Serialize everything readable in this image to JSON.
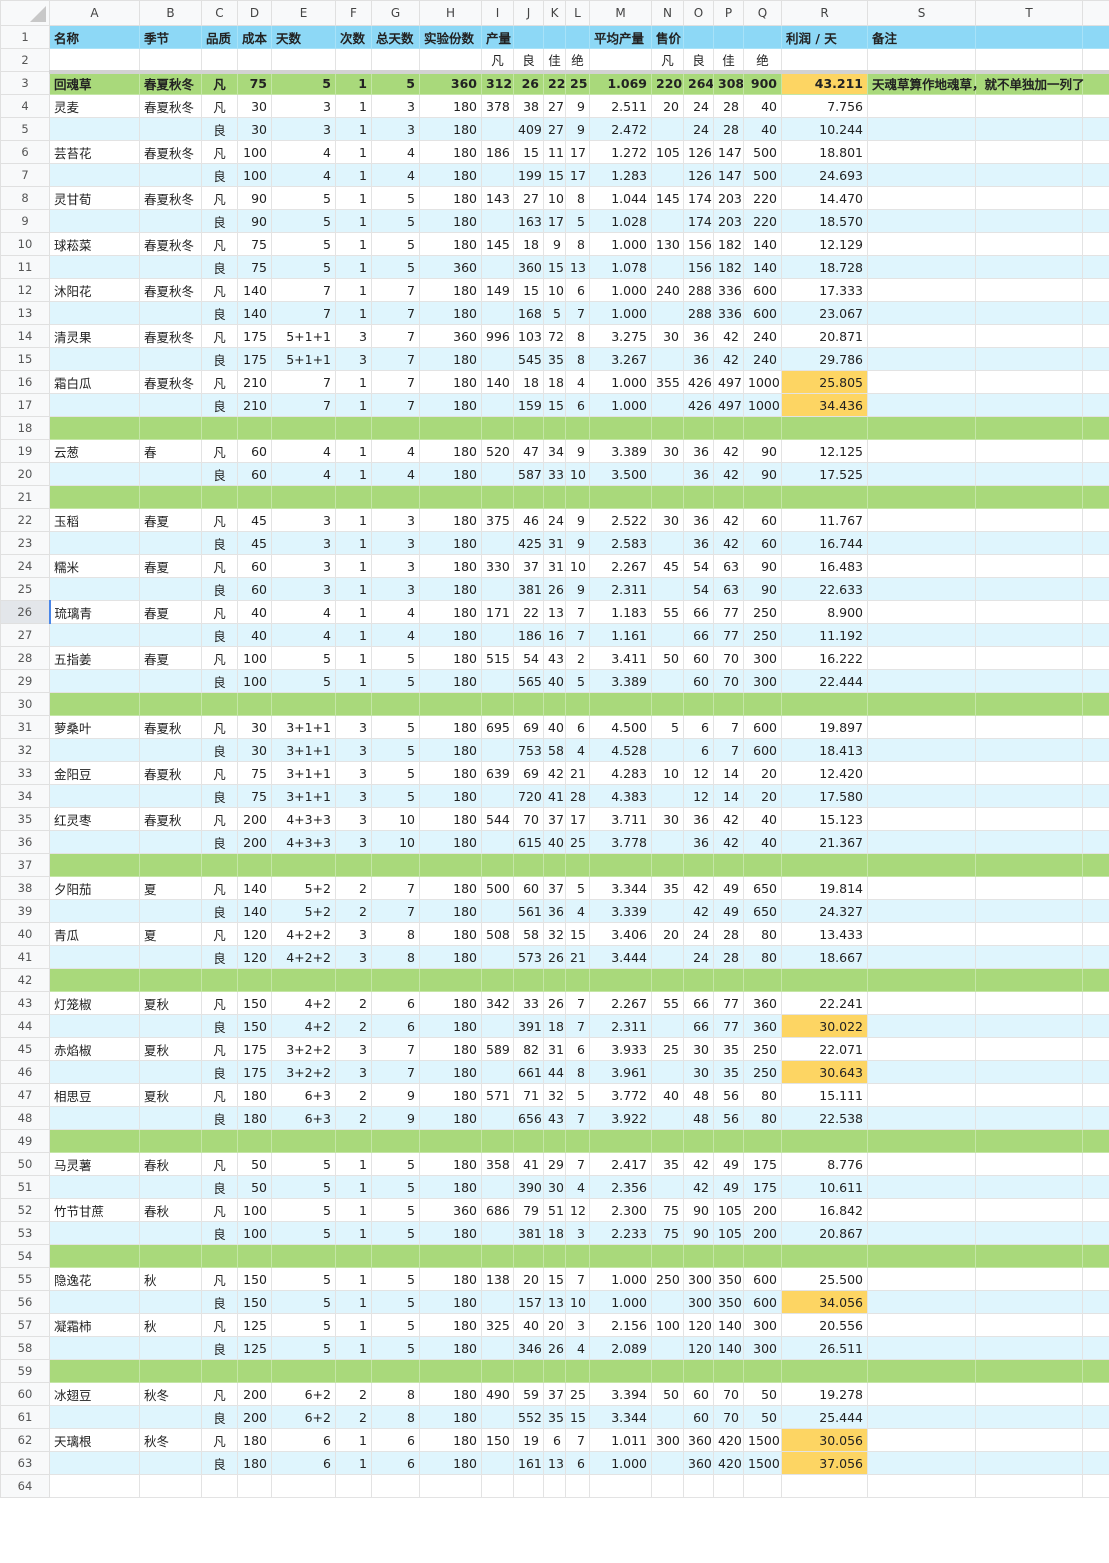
{
  "columns": [
    "A",
    "B",
    "C",
    "D",
    "E",
    "F",
    "G",
    "H",
    "I",
    "J",
    "K",
    "L",
    "M",
    "N",
    "O",
    "P",
    "Q",
    "R",
    "S",
    "T"
  ],
  "header_row": {
    "n": "1",
    "cells": [
      "名称",
      "季节",
      "品质",
      "成本",
      "天数",
      "次数",
      "总天数",
      "实验份数",
      "产量",
      "",
      "",
      "",
      "平均产量",
      "售价",
      "",
      "",
      "",
      "利润 / 天",
      "备注",
      ""
    ]
  },
  "subheader_row": {
    "n": "2",
    "cells": [
      "",
      "",
      "",
      "",
      "",
      "",
      "",
      "",
      "凡",
      "良",
      "佳",
      "绝",
      "",
      "凡",
      "良",
      "佳",
      "绝",
      "",
      "",
      ""
    ]
  },
  "colors": {
    "header": "#8dd8f6",
    "group": "#a9d97b",
    "alt_row": "#dff5fd",
    "profit_highlight": "#fdd563"
  },
  "active_cell": "A26",
  "rows": [
    {
      "n": "3",
      "kind": "group",
      "hl": true,
      "cells": [
        "回魂草",
        "春夏秋冬",
        "凡",
        "75",
        "5",
        "1",
        "5",
        "360",
        "312",
        "26",
        "22",
        "25",
        "1.069",
        "220",
        "264",
        "308",
        "900",
        "43.211",
        "天魂草算作地魂草，就不单独加一列了",
        ""
      ]
    },
    {
      "n": "4",
      "kind": "plain",
      "cells": [
        "灵麦",
        "春夏秋冬",
        "凡",
        "30",
        "3",
        "1",
        "3",
        "180",
        "378",
        "38",
        "27",
        "9",
        "2.511",
        "20",
        "24",
        "28",
        "40",
        "7.756"
      ]
    },
    {
      "n": "5",
      "kind": "alt",
      "cells": [
        "",
        "",
        "良",
        "30",
        "3",
        "1",
        "3",
        "180",
        "",
        "409",
        "27",
        "9",
        "2.472",
        "",
        "24",
        "28",
        "40",
        "10.244"
      ]
    },
    {
      "n": "6",
      "kind": "plain",
      "cells": [
        "芸苔花",
        "春夏秋冬",
        "凡",
        "100",
        "4",
        "1",
        "4",
        "180",
        "186",
        "15",
        "11",
        "17",
        "1.272",
        "105",
        "126",
        "147",
        "500",
        "18.801"
      ]
    },
    {
      "n": "7",
      "kind": "alt",
      "cells": [
        "",
        "",
        "良",
        "100",
        "4",
        "1",
        "4",
        "180",
        "",
        "199",
        "15",
        "17",
        "1.283",
        "",
        "126",
        "147",
        "500",
        "24.693"
      ]
    },
    {
      "n": "8",
      "kind": "plain",
      "cells": [
        "灵甘荀",
        "春夏秋冬",
        "凡",
        "90",
        "5",
        "1",
        "5",
        "180",
        "143",
        "27",
        "10",
        "8",
        "1.044",
        "145",
        "174",
        "203",
        "220",
        "14.470"
      ]
    },
    {
      "n": "9",
      "kind": "alt",
      "cells": [
        "",
        "",
        "良",
        "90",
        "5",
        "1",
        "5",
        "180",
        "",
        "163",
        "17",
        "5",
        "1.028",
        "",
        "174",
        "203",
        "220",
        "18.570"
      ]
    },
    {
      "n": "10",
      "kind": "plain",
      "cells": [
        "球菘菜",
        "春夏秋冬",
        "凡",
        "75",
        "5",
        "1",
        "5",
        "180",
        "145",
        "18",
        "9",
        "8",
        "1.000",
        "130",
        "156",
        "182",
        "140",
        "12.129"
      ]
    },
    {
      "n": "11",
      "kind": "alt",
      "cells": [
        "",
        "",
        "良",
        "75",
        "5",
        "1",
        "5",
        "360",
        "",
        "360",
        "15",
        "13",
        "1.078",
        "",
        "156",
        "182",
        "140",
        "18.728"
      ]
    },
    {
      "n": "12",
      "kind": "plain",
      "cells": [
        "沐阳花",
        "春夏秋冬",
        "凡",
        "140",
        "7",
        "1",
        "7",
        "180",
        "149",
        "15",
        "10",
        "6",
        "1.000",
        "240",
        "288",
        "336",
        "600",
        "17.333"
      ]
    },
    {
      "n": "13",
      "kind": "alt",
      "cells": [
        "",
        "",
        "良",
        "140",
        "7",
        "1",
        "7",
        "180",
        "",
        "168",
        "5",
        "7",
        "1.000",
        "",
        "288",
        "336",
        "600",
        "23.067"
      ]
    },
    {
      "n": "14",
      "kind": "plain",
      "cells": [
        "清灵果",
        "春夏秋冬",
        "凡",
        "175",
        "5+1+1",
        "3",
        "7",
        "360",
        "996",
        "103",
        "72",
        "8",
        "3.275",
        "30",
        "36",
        "42",
        "240",
        "20.871"
      ]
    },
    {
      "n": "15",
      "kind": "alt",
      "cells": [
        "",
        "",
        "良",
        "175",
        "5+1+1",
        "3",
        "7",
        "180",
        "",
        "545",
        "35",
        "8",
        "3.267",
        "",
        "36",
        "42",
        "240",
        "29.786"
      ]
    },
    {
      "n": "16",
      "kind": "plain",
      "hl": true,
      "cells": [
        "霜白瓜",
        "春夏秋冬",
        "凡",
        "210",
        "7",
        "1",
        "7",
        "180",
        "140",
        "18",
        "18",
        "4",
        "1.000",
        "355",
        "426",
        "497",
        "1000",
        "25.805"
      ]
    },
    {
      "n": "17",
      "kind": "alt",
      "hl": true,
      "cells": [
        "",
        "",
        "良",
        "210",
        "7",
        "1",
        "7",
        "180",
        "",
        "159",
        "15",
        "6",
        "1.000",
        "",
        "426",
        "497",
        "1000",
        "34.436"
      ]
    },
    {
      "n": "18",
      "kind": "separator",
      "cells": []
    },
    {
      "n": "19",
      "kind": "plain",
      "cells": [
        "云葱",
        "春",
        "凡",
        "60",
        "4",
        "1",
        "4",
        "180",
        "520",
        "47",
        "34",
        "9",
        "3.389",
        "30",
        "36",
        "42",
        "90",
        "12.125"
      ]
    },
    {
      "n": "20",
      "kind": "alt",
      "cells": [
        "",
        "",
        "良",
        "60",
        "4",
        "1",
        "4",
        "180",
        "",
        "587",
        "33",
        "10",
        "3.500",
        "",
        "36",
        "42",
        "90",
        "17.525"
      ]
    },
    {
      "n": "21",
      "kind": "separator",
      "cells": []
    },
    {
      "n": "22",
      "kind": "plain",
      "cells": [
        "玉稻",
        "春夏",
        "凡",
        "45",
        "3",
        "1",
        "3",
        "180",
        "375",
        "46",
        "24",
        "9",
        "2.522",
        "30",
        "36",
        "42",
        "60",
        "11.767"
      ]
    },
    {
      "n": "23",
      "kind": "alt",
      "cells": [
        "",
        "",
        "良",
        "45",
        "3",
        "1",
        "3",
        "180",
        "",
        "425",
        "31",
        "9",
        "2.583",
        "",
        "36",
        "42",
        "60",
        "16.744"
      ]
    },
    {
      "n": "24",
      "kind": "plain",
      "cells": [
        "糯米",
        "春夏",
        "凡",
        "60",
        "3",
        "1",
        "3",
        "180",
        "330",
        "37",
        "31",
        "10",
        "2.267",
        "45",
        "54",
        "63",
        "90",
        "16.483"
      ]
    },
    {
      "n": "25",
      "kind": "alt",
      "cells": [
        "",
        "",
        "良",
        "60",
        "3",
        "1",
        "3",
        "180",
        "",
        "381",
        "26",
        "9",
        "2.311",
        "",
        "54",
        "63",
        "90",
        "22.633"
      ]
    },
    {
      "n": "26",
      "kind": "plain",
      "cells": [
        "琉璃青",
        "春夏",
        "凡",
        "40",
        "4",
        "1",
        "4",
        "180",
        "171",
        "22",
        "13",
        "7",
        "1.183",
        "55",
        "66",
        "77",
        "250",
        "8.900"
      ]
    },
    {
      "n": "27",
      "kind": "alt",
      "cells": [
        "",
        "",
        "良",
        "40",
        "4",
        "1",
        "4",
        "180",
        "",
        "186",
        "16",
        "7",
        "1.161",
        "",
        "66",
        "77",
        "250",
        "11.192"
      ]
    },
    {
      "n": "28",
      "kind": "plain",
      "cells": [
        "五指姜",
        "春夏",
        "凡",
        "100",
        "5",
        "1",
        "5",
        "180",
        "515",
        "54",
        "43",
        "2",
        "3.411",
        "50",
        "60",
        "70",
        "300",
        "16.222"
      ]
    },
    {
      "n": "29",
      "kind": "alt",
      "cells": [
        "",
        "",
        "良",
        "100",
        "5",
        "1",
        "5",
        "180",
        "",
        "565",
        "40",
        "5",
        "3.389",
        "",
        "60",
        "70",
        "300",
        "22.444"
      ]
    },
    {
      "n": "30",
      "kind": "separator",
      "cells": []
    },
    {
      "n": "31",
      "kind": "plain",
      "cells": [
        "萝桑叶",
        "春夏秋",
        "凡",
        "30",
        "3+1+1",
        "3",
        "5",
        "180",
        "695",
        "69",
        "40",
        "6",
        "4.500",
        "5",
        "6",
        "7",
        "600",
        "19.897"
      ]
    },
    {
      "n": "32",
      "kind": "alt",
      "cells": [
        "",
        "",
        "良",
        "30",
        "3+1+1",
        "3",
        "5",
        "180",
        "",
        "753",
        "58",
        "4",
        "4.528",
        "",
        "6",
        "7",
        "600",
        "18.413"
      ]
    },
    {
      "n": "33",
      "kind": "plain",
      "cells": [
        "金阳豆",
        "春夏秋",
        "凡",
        "75",
        "3+1+1",
        "3",
        "5",
        "180",
        "639",
        "69",
        "42",
        "21",
        "4.283",
        "10",
        "12",
        "14",
        "20",
        "12.420"
      ]
    },
    {
      "n": "34",
      "kind": "alt",
      "cells": [
        "",
        "",
        "良",
        "75",
        "3+1+1",
        "3",
        "5",
        "180",
        "",
        "720",
        "41",
        "28",
        "4.383",
        "",
        "12",
        "14",
        "20",
        "17.580"
      ]
    },
    {
      "n": "35",
      "kind": "plain",
      "cells": [
        "红灵枣",
        "春夏秋",
        "凡",
        "200",
        "4+3+3",
        "3",
        "10",
        "180",
        "544",
        "70",
        "37",
        "17",
        "3.711",
        "30",
        "36",
        "42",
        "40",
        "15.123"
      ]
    },
    {
      "n": "36",
      "kind": "alt",
      "cells": [
        "",
        "",
        "良",
        "200",
        "4+3+3",
        "3",
        "10",
        "180",
        "",
        "615",
        "40",
        "25",
        "3.778",
        "",
        "36",
        "42",
        "40",
        "21.367"
      ]
    },
    {
      "n": "37",
      "kind": "separator",
      "cells": []
    },
    {
      "n": "38",
      "kind": "plain",
      "cells": [
        "夕阳茄",
        "夏",
        "凡",
        "140",
        "5+2",
        "2",
        "7",
        "180",
        "500",
        "60",
        "37",
        "5",
        "3.344",
        "35",
        "42",
        "49",
        "650",
        "19.814"
      ]
    },
    {
      "n": "39",
      "kind": "alt",
      "cells": [
        "",
        "",
        "良",
        "140",
        "5+2",
        "2",
        "7",
        "180",
        "",
        "561",
        "36",
        "4",
        "3.339",
        "",
        "42",
        "49",
        "650",
        "24.327"
      ]
    },
    {
      "n": "40",
      "kind": "plain",
      "cells": [
        "青瓜",
        "夏",
        "凡",
        "120",
        "4+2+2",
        "3",
        "8",
        "180",
        "508",
        "58",
        "32",
        "15",
        "3.406",
        "20",
        "24",
        "28",
        "80",
        "13.433"
      ]
    },
    {
      "n": "41",
      "kind": "alt",
      "cells": [
        "",
        "",
        "良",
        "120",
        "4+2+2",
        "3",
        "8",
        "180",
        "",
        "573",
        "26",
        "21",
        "3.444",
        "",
        "24",
        "28",
        "80",
        "18.667"
      ]
    },
    {
      "n": "42",
      "kind": "separator",
      "cells": []
    },
    {
      "n": "43",
      "kind": "plain",
      "cells": [
        "灯笼椒",
        "夏秋",
        "凡",
        "150",
        "4+2",
        "2",
        "6",
        "180",
        "342",
        "33",
        "26",
        "7",
        "2.267",
        "55",
        "66",
        "77",
        "360",
        "22.241"
      ]
    },
    {
      "n": "44",
      "kind": "alt",
      "hl": true,
      "cells": [
        "",
        "",
        "良",
        "150",
        "4+2",
        "2",
        "6",
        "180",
        "",
        "391",
        "18",
        "7",
        "2.311",
        "",
        "66",
        "77",
        "360",
        "30.022"
      ]
    },
    {
      "n": "45",
      "kind": "plain",
      "cells": [
        "赤焰椒",
        "夏秋",
        "凡",
        "175",
        "3+2+2",
        "3",
        "7",
        "180",
        "589",
        "82",
        "31",
        "6",
        "3.933",
        "25",
        "30",
        "35",
        "250",
        "22.071"
      ]
    },
    {
      "n": "46",
      "kind": "alt",
      "hl": true,
      "cells": [
        "",
        "",
        "良",
        "175",
        "3+2+2",
        "3",
        "7",
        "180",
        "",
        "661",
        "44",
        "8",
        "3.961",
        "",
        "30",
        "35",
        "250",
        "30.643"
      ]
    },
    {
      "n": "47",
      "kind": "plain",
      "cells": [
        "相思豆",
        "夏秋",
        "凡",
        "180",
        "6+3",
        "2",
        "9",
        "180",
        "571",
        "71",
        "32",
        "5",
        "3.772",
        "40",
        "48",
        "56",
        "80",
        "15.111"
      ]
    },
    {
      "n": "48",
      "kind": "alt",
      "cells": [
        "",
        "",
        "良",
        "180",
        "6+3",
        "2",
        "9",
        "180",
        "",
        "656",
        "43",
        "7",
        "3.922",
        "",
        "48",
        "56",
        "80",
        "22.538"
      ]
    },
    {
      "n": "49",
      "kind": "separator",
      "cells": []
    },
    {
      "n": "50",
      "kind": "plain",
      "cells": [
        "马灵薯",
        "春秋",
        "凡",
        "50",
        "5",
        "1",
        "5",
        "180",
        "358",
        "41",
        "29",
        "7",
        "2.417",
        "35",
        "42",
        "49",
        "175",
        "8.776"
      ]
    },
    {
      "n": "51",
      "kind": "alt",
      "cells": [
        "",
        "",
        "良",
        "50",
        "5",
        "1",
        "5",
        "180",
        "",
        "390",
        "30",
        "4",
        "2.356",
        "",
        "42",
        "49",
        "175",
        "10.611"
      ]
    },
    {
      "n": "52",
      "kind": "plain",
      "cells": [
        "竹节甘蔗",
        "春秋",
        "凡",
        "100",
        "5",
        "1",
        "5",
        "360",
        "686",
        "79",
        "51",
        "12",
        "2.300",
        "75",
        "90",
        "105",
        "200",
        "16.842"
      ]
    },
    {
      "n": "53",
      "kind": "alt",
      "cells": [
        "",
        "",
        "良",
        "100",
        "5",
        "1",
        "5",
        "180",
        "",
        "381",
        "18",
        "3",
        "2.233",
        "75",
        "90",
        "105",
        "200",
        "20.867"
      ]
    },
    {
      "n": "54",
      "kind": "separator",
      "cells": []
    },
    {
      "n": "55",
      "kind": "plain",
      "cells": [
        "隐逸花",
        "秋",
        "凡",
        "150",
        "5",
        "1",
        "5",
        "180",
        "138",
        "20",
        "15",
        "7",
        "1.000",
        "250",
        "300",
        "350",
        "600",
        "25.500"
      ]
    },
    {
      "n": "56",
      "kind": "alt",
      "hl": true,
      "cells": [
        "",
        "",
        "良",
        "150",
        "5",
        "1",
        "5",
        "180",
        "",
        "157",
        "13",
        "10",
        "1.000",
        "",
        "300",
        "350",
        "600",
        "34.056"
      ]
    },
    {
      "n": "57",
      "kind": "plain",
      "cells": [
        "凝霜柿",
        "秋",
        "凡",
        "125",
        "5",
        "1",
        "5",
        "180",
        "325",
        "40",
        "20",
        "3",
        "2.156",
        "100",
        "120",
        "140",
        "300",
        "20.556"
      ]
    },
    {
      "n": "58",
      "kind": "alt",
      "cells": [
        "",
        "",
        "良",
        "125",
        "5",
        "1",
        "5",
        "180",
        "",
        "346",
        "26",
        "4",
        "2.089",
        "",
        "120",
        "140",
        "300",
        "26.511"
      ]
    },
    {
      "n": "59",
      "kind": "separator",
      "cells": []
    },
    {
      "n": "60",
      "kind": "plain",
      "cells": [
        "冰翅豆",
        "秋冬",
        "凡",
        "200",
        "6+2",
        "2",
        "8",
        "180",
        "490",
        "59",
        "37",
        "25",
        "3.394",
        "50",
        "60",
        "70",
        "50",
        "19.278"
      ]
    },
    {
      "n": "61",
      "kind": "alt",
      "cells": [
        "",
        "",
        "良",
        "200",
        "6+2",
        "2",
        "8",
        "180",
        "",
        "552",
        "35",
        "15",
        "3.344",
        "",
        "60",
        "70",
        "50",
        "25.444"
      ]
    },
    {
      "n": "62",
      "kind": "plain",
      "hl": true,
      "cells": [
        "天璃根",
        "秋冬",
        "凡",
        "180",
        "6",
        "1",
        "6",
        "180",
        "150",
        "19",
        "6",
        "7",
        "1.011",
        "300",
        "360",
        "420",
        "1500",
        "30.056"
      ]
    },
    {
      "n": "63",
      "kind": "alt",
      "hl": true,
      "cells": [
        "",
        "",
        "良",
        "180",
        "6",
        "1",
        "6",
        "180",
        "",
        "161",
        "13",
        "6",
        "1.000",
        "",
        "360",
        "420",
        "1500",
        "37.056"
      ]
    },
    {
      "n": "64",
      "kind": "plain",
      "cells": []
    }
  ]
}
